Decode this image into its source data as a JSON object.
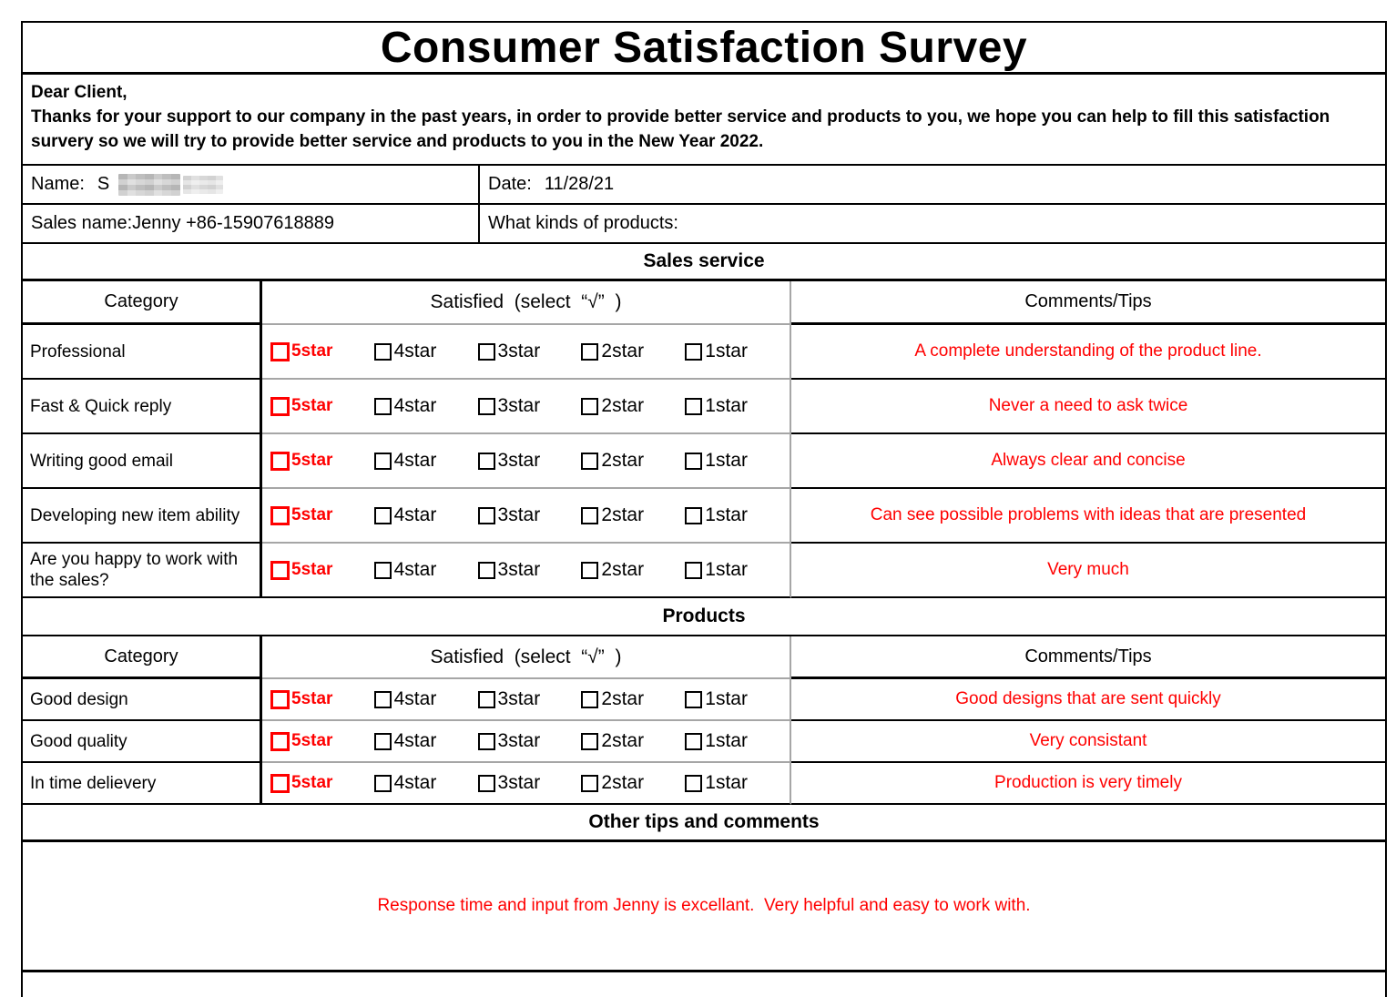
{
  "title": "Consumer Satisfaction Survey",
  "intro": {
    "salutation": "Dear Client,",
    "body": "Thanks for your support to our company in the past years, in order to provide better service and products to you, we hope you can help to fill this satisfaction survery so we will try to provide better service and products to you in the New Year 2022."
  },
  "info": {
    "name_label": "Name:",
    "name_value_visible": "S",
    "name_redacted": true,
    "date_label": "Date:",
    "date_value": "11/28/21",
    "sales_label": "Sales name:",
    "sales_value": "Jenny +86-15907618889",
    "products_kind_label": "What kinds of products:",
    "products_kind_value": ""
  },
  "rating_scale": [
    "5star",
    "4star",
    "3star",
    "2star",
    "1star"
  ],
  "colors": {
    "accent_red": "#ff0000",
    "grid_black": "#000000",
    "grid_gray": "#a6a6a6"
  },
  "sections": [
    {
      "heading": "Sales service",
      "columns": {
        "category": "Category",
        "satisfied": "Satisfied  (select  “√”  )",
        "comments": "Comments/Tips"
      },
      "rows": [
        {
          "category": "Professional",
          "selected": "5star",
          "comment": "A complete understanding of the product line."
        },
        {
          "category": "Fast & Quick reply",
          "selected": "5star",
          "comment": "Never a need to ask twice"
        },
        {
          "category": "Writing good email",
          "selected": "5star",
          "comment": "Always clear and concise"
        },
        {
          "category": "Developing new item ability",
          "selected": "5star",
          "comment": "Can see possible problems with ideas that are presented"
        },
        {
          "category": "Are you happy to work with the sales?",
          "selected": "5star",
          "comment": "Very much"
        }
      ]
    },
    {
      "heading": "Products",
      "columns": {
        "category": "Category",
        "satisfied": "Satisfied  (select  “√”  )",
        "comments": "Comments/Tips"
      },
      "rows": [
        {
          "category": "Good design",
          "selected": "5star",
          "comment": "Good designs that are sent quickly"
        },
        {
          "category": "Good quality",
          "selected": "5star",
          "comment": "Very consistant"
        },
        {
          "category": "In time delievery",
          "selected": "5star",
          "comment": "Production is very timely"
        }
      ]
    }
  ],
  "other": {
    "heading": "Other tips and comments",
    "comment": "Response time and input from Jenny is excellant.  Very helpful and easy to work with."
  }
}
